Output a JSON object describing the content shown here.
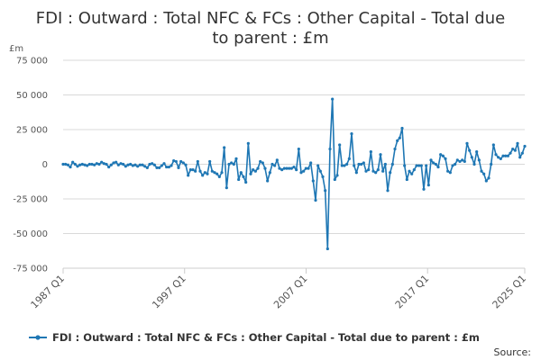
{
  "chart_data": {
    "type": "line",
    "title_line1": "FDI : Outward : Total NFC & FCs : Other Capital - Total due",
    "title_line2": "to parent : £m",
    "unit": "£m",
    "ylim": [
      -75000,
      75000
    ],
    "y_ticks": [
      75000,
      50000,
      25000,
      0,
      -25000,
      -50000,
      -75000
    ],
    "y_tick_labels": [
      "75 000",
      "50 000",
      "25 000",
      "0",
      "-25 000",
      "-50 000",
      "-75 000"
    ],
    "x_ticks": [
      {
        "label": "1987 Q1",
        "year": 1987
      },
      {
        "label": "1997 Q1",
        "year": 1997
      },
      {
        "label": "2007 Q1",
        "year": 2007
      },
      {
        "label": "2017 Q1",
        "year": 2017
      },
      {
        "label": "2025 Q1",
        "year": 2025
      }
    ],
    "x_start": "1987 Q1",
    "series": [
      {
        "name": "FDI : Outward : Total NFC & FCs : Other Capital - Total due to parent : £m",
        "color": "#1f77b4",
        "values": [
          0,
          0,
          -500,
          -2000,
          1500,
          0,
          -1500,
          -500,
          0,
          -500,
          -1000,
          0,
          0,
          -500,
          500,
          0,
          1500,
          500,
          0,
          -2000,
          -500,
          1000,
          1500,
          -500,
          500,
          0,
          -1500,
          -500,
          0,
          -1000,
          -500,
          -1500,
          -500,
          -500,
          -1500,
          -2500,
          0,
          500,
          -500,
          -2500,
          -2500,
          -1000,
          500,
          -2000,
          -2000,
          -1000,
          2500,
          2000,
          -2500,
          2000,
          1000,
          -500,
          -8000,
          -4000,
          -4000,
          -5000,
          2000,
          -5000,
          -8000,
          -6000,
          -7000,
          2000,
          -5000,
          -6000,
          -7000,
          -9000,
          -6000,
          12000,
          -17000,
          0,
          1000,
          0,
          4000,
          -11000,
          -6000,
          -9000,
          -13000,
          15000,
          -7000,
          -4000,
          -5000,
          -3000,
          2000,
          1000,
          -3000,
          -12000,
          -6000,
          0,
          -1000,
          3000,
          -3000,
          -4000,
          -3000,
          -3000,
          -3000,
          -3000,
          -2000,
          -4000,
          11000,
          -6000,
          -5000,
          -3000,
          -3000,
          1000,
          -12000,
          -26000,
          -1000,
          -5000,
          -9000,
          -19000,
          -61000,
          11000,
          47000,
          -11000,
          -8000,
          14000,
          -1000,
          -1000,
          0,
          4000,
          22000,
          -1000,
          -6000,
          0,
          0,
          1000,
          -5000,
          -4000,
          9000,
          -5000,
          -6000,
          -4000,
          7000,
          -5000,
          0,
          -19000,
          -6000,
          0,
          11000,
          17000,
          19000,
          26000,
          -1000,
          -11000,
          -5000,
          -7000,
          -4000,
          -1000,
          -1000,
          -1000,
          -18000,
          -1000,
          -15000,
          3000,
          1000,
          0,
          -2000,
          7000,
          6000,
          4000,
          -5000,
          -6000,
          -1000,
          0,
          3000,
          2000,
          3000,
          2000,
          15000,
          10000,
          5000,
          0,
          9000,
          3000,
          -5000,
          -7000,
          -12000,
          -10000,
          0,
          14000,
          7000,
          5000,
          4000,
          6000,
          6000,
          6000,
          8000,
          11000,
          10000,
          15000,
          5000,
          8000,
          13000
        ]
      }
    ],
    "legend": "bottom",
    "grid": true
  },
  "footer": {
    "source_label": "Source:"
  }
}
